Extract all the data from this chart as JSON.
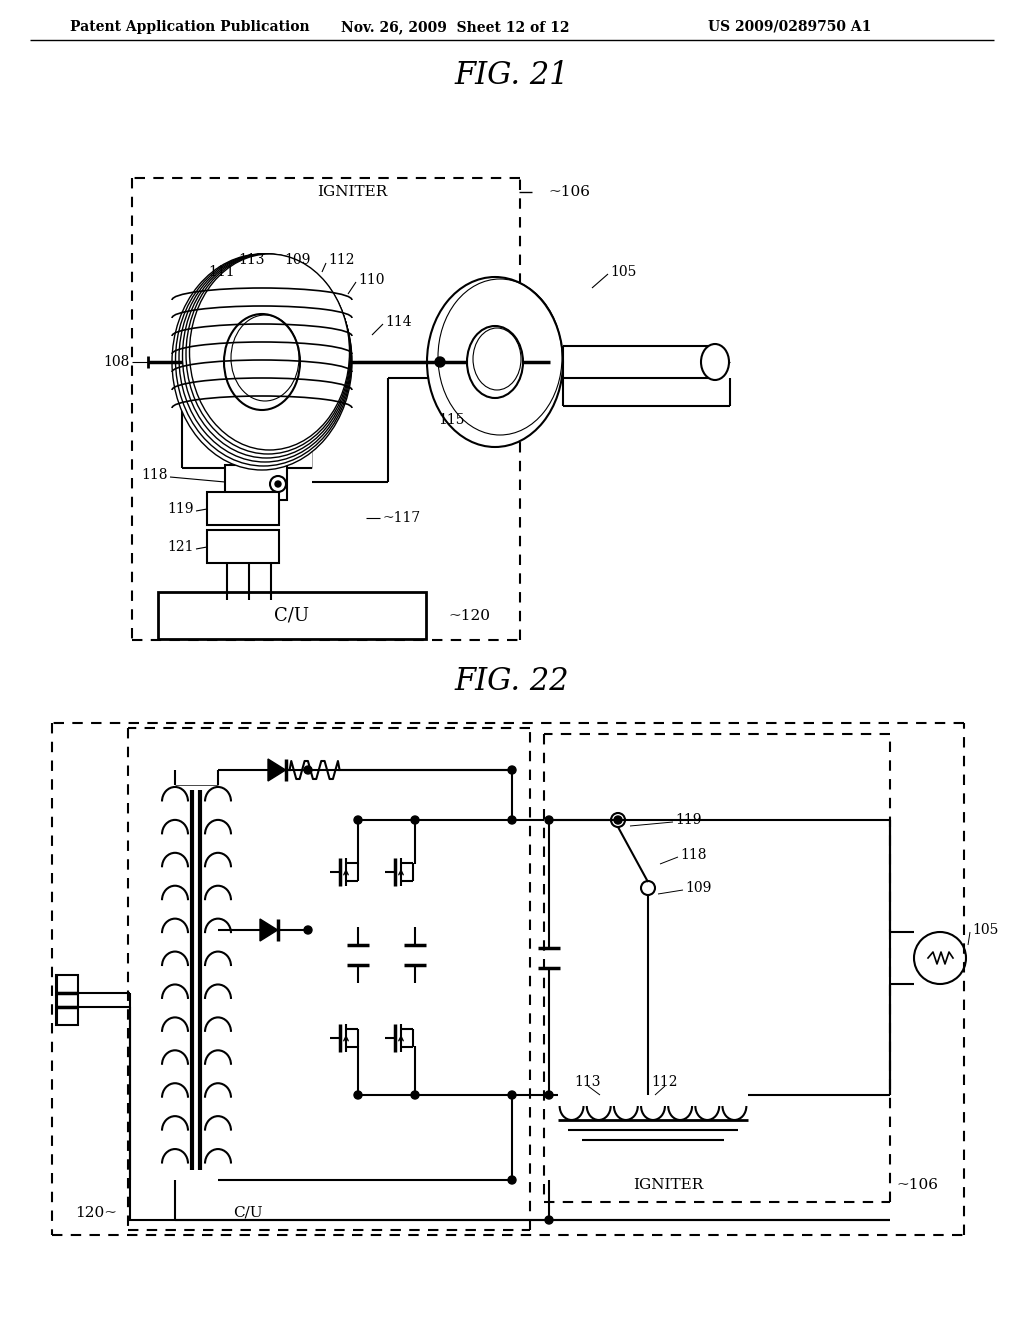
{
  "header_left": "Patent Application Publication",
  "header_mid": "Nov. 26, 2009  Sheet 12 of 12",
  "header_right": "US 2009/0289750 A1",
  "fig21_title": "FIG. 21",
  "fig22_title": "FIG. 22",
  "bg_color": "#ffffff"
}
